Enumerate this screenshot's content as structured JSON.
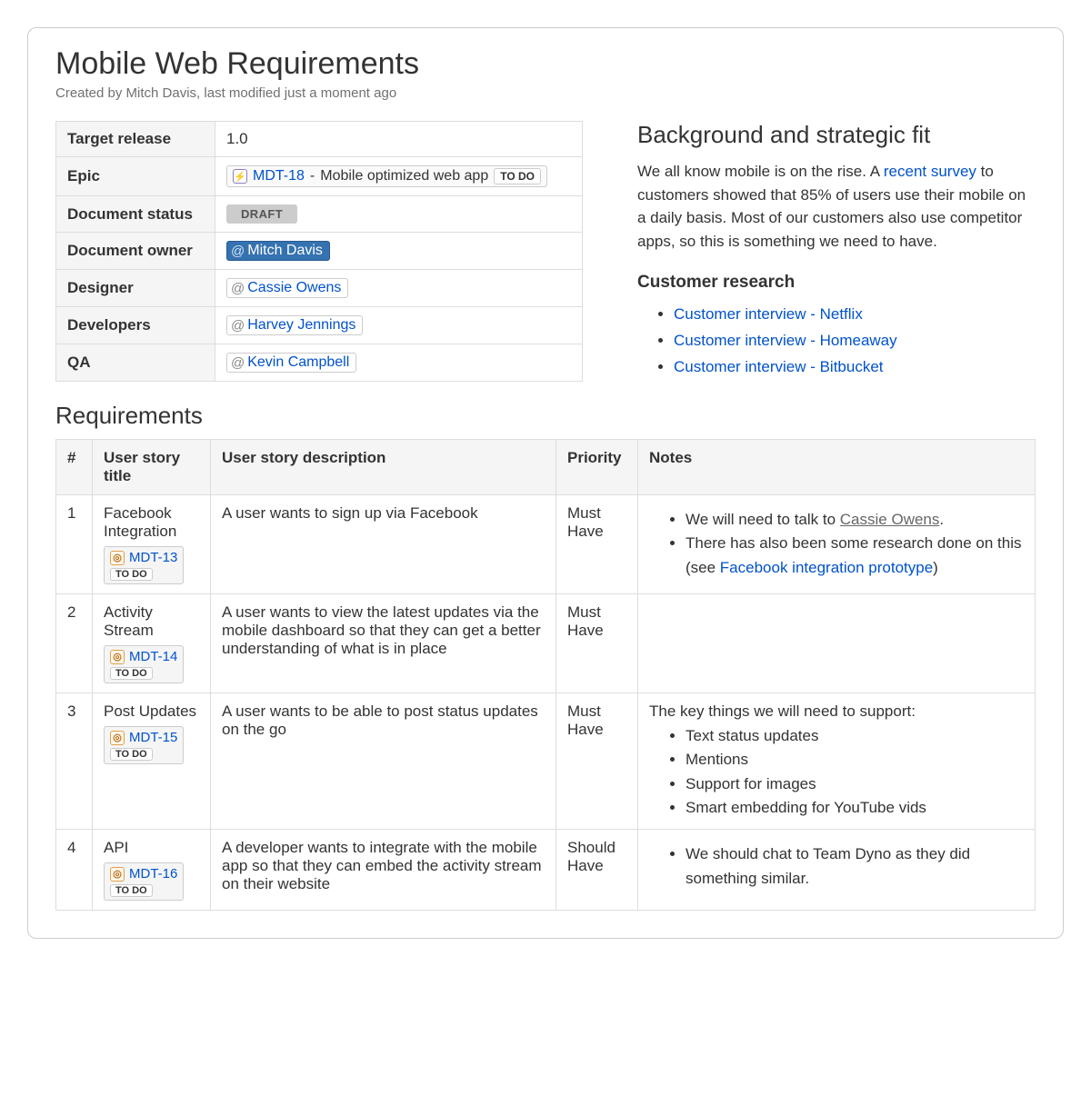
{
  "page": {
    "title": "Mobile Web Requirements",
    "byline": "Created by Mitch Davis, last modified just a moment ago"
  },
  "meta": {
    "rows": {
      "target_release": {
        "label": "Target release",
        "value": "1.0"
      },
      "epic": {
        "label": "Epic",
        "issue_key": "MDT-18",
        "summary": "Mobile optimized web app",
        "status": "TO DO"
      },
      "doc_status": {
        "label": "Document status",
        "badge": "DRAFT"
      },
      "doc_owner": {
        "label": "Document owner",
        "mention": "Mitch Davis",
        "primary": true
      },
      "designer": {
        "label": "Designer",
        "mention": "Cassie Owens"
      },
      "developers": {
        "label": "Developers",
        "mention": "Harvey Jennings"
      },
      "qa": {
        "label": "QA",
        "mention": "Kevin Campbell"
      }
    }
  },
  "side": {
    "heading": "Background and strategic fit",
    "para_before_link": "We all know mobile is on the rise. A ",
    "link_text": "recent survey",
    "para_after_link": " to customers showed that 85% of users use their mobile on a daily basis. Most of our customers also use competitor apps, so this is something we need to have.",
    "sub_heading": "Customer research",
    "links": [
      "Customer interview - Netflix",
      "Customer interview - Homeaway",
      "Customer interview - Bitbucket"
    ]
  },
  "requirements": {
    "heading": "Requirements",
    "columns": [
      "#",
      "User story title",
      "User story description",
      "Priority",
      "Notes"
    ],
    "rows": [
      {
        "num": "1",
        "title": "Facebook Integration",
        "issue_key": "MDT-13",
        "issue_status": "TO DO",
        "description": "A user wants to sign up via Facebook",
        "priority": "Must Have",
        "notes_type": "bullets_rich",
        "bullets": [
          {
            "pre": "We will need to talk to ",
            "link": "Cassie Owens",
            "link_class": "muted-link",
            "post": "."
          },
          {
            "pre": "There has also been some research done on this (see ",
            "link": "Facebook integration prototype",
            "link_class": "link",
            "post": ")"
          }
        ]
      },
      {
        "num": "2",
        "title": "Activity Stream",
        "issue_key": "MDT-14",
        "issue_status": "TO DO",
        "description": "A user wants to view the latest updates via the mobile dashboard so that they can get a better understanding of what is in place",
        "priority": "Must Have",
        "notes_type": "empty"
      },
      {
        "num": "3",
        "title": "Post Updates",
        "issue_key": "MDT-15",
        "issue_status": "TO DO",
        "description": "A user wants to be able to post status updates on the go",
        "priority": "Must Have",
        "notes_type": "lead_bullets",
        "lead": "The key things we will need to support:",
        "bullets": [
          "Text status updates",
          "Mentions",
          "Support for images",
          "Smart embedding for YouTube vids"
        ]
      },
      {
        "num": "4",
        "title": "API",
        "issue_key": "MDT-16",
        "issue_status": "TO DO",
        "description": "A developer wants to integrate with the mobile app so that they can embed the activity stream on their website",
        "priority": "Should Have",
        "notes_type": "bullets_plain",
        "bullets": [
          "We should chat to Team Dyno as they did something similar."
        ]
      }
    ]
  },
  "colors": {
    "link": "#0052cc",
    "border": "#dddddd",
    "header_bg": "#f5f5f5",
    "mention_primary_bg": "#3572b0"
  }
}
